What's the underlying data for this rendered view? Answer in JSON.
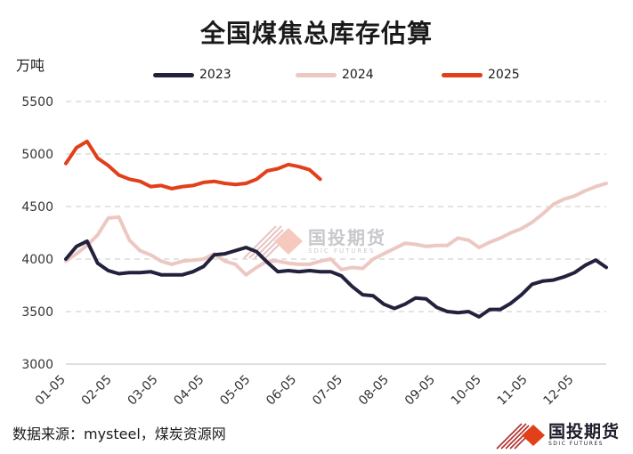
{
  "title": "全国煤焦总库存估算",
  "source": "数据来源：mysteel，煤炭资源网",
  "logo": {
    "text": "国投期货",
    "subtext": "SDIC FUTURES"
  },
  "watermark": {
    "text": "国投期货",
    "subtext": "SDIC FUTURES"
  },
  "chart_data": {
    "type": "line",
    "title": "全国煤焦总库存估算",
    "ylabel": "万吨",
    "ylim": [
      3000,
      5500
    ],
    "yticks": [
      3000,
      3500,
      4000,
      4500,
      5000,
      5500
    ],
    "xticks": [
      "01-05",
      "02-05",
      "03-05",
      "04-05",
      "05-05",
      "06-05",
      "07-05",
      "08-05",
      "09-05",
      "10-05",
      "11-05",
      "12-05"
    ],
    "grid": "horizontal-dashed",
    "legend_position": "top",
    "series": [
      {
        "name": "2023",
        "color": "#23223d",
        "values": [
          4000,
          4120,
          4170,
          3960,
          3890,
          3860,
          3870,
          3870,
          3880,
          3850,
          3850,
          3850,
          3880,
          3930,
          4040,
          4050,
          4080,
          4110,
          4070,
          3970,
          3880,
          3890,
          3880,
          3890,
          3880,
          3880,
          3840,
          3740,
          3660,
          3650,
          3570,
          3530,
          3570,
          3630,
          3620,
          3540,
          3500,
          3490,
          3500,
          3450,
          3520,
          3520,
          3580,
          3660,
          3760,
          3790,
          3800,
          3830,
          3870,
          3940,
          3990,
          3920
        ]
      },
      {
        "name": "2024",
        "color": "#ecc8c2",
        "values": [
          3980,
          4050,
          4130,
          4230,
          4390,
          4400,
          4180,
          4080,
          4040,
          3980,
          3950,
          3980,
          3990,
          4000,
          4050,
          3980,
          3950,
          3850,
          3920,
          3980,
          3980,
          3960,
          3950,
          3950,
          3980,
          4000,
          3900,
          3920,
          3910,
          4000,
          4050,
          4100,
          4150,
          4140,
          4120,
          4130,
          4130,
          4200,
          4180,
          4110,
          4160,
          4200,
          4250,
          4290,
          4350,
          4430,
          4520,
          4570,
          4600,
          4650,
          4690,
          4720
        ]
      },
      {
        "name": "2025",
        "color": "#e23f1b",
        "values": [
          4910,
          5060,
          5120,
          4960,
          4890,
          4800,
          4760,
          4740,
          4690,
          4700,
          4670,
          4690,
          4700,
          4730,
          4740,
          4720,
          4710,
          4720,
          4760,
          4840,
          4860,
          4900,
          4880,
          4850,
          4760
        ]
      }
    ]
  }
}
